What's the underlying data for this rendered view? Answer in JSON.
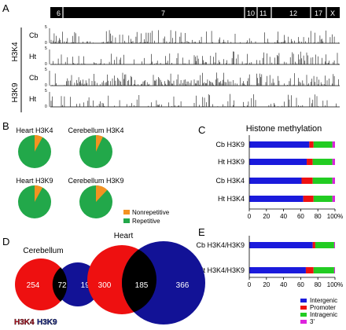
{
  "panels": {
    "a": "A",
    "b": "B",
    "c": "C",
    "d": "D",
    "e": "E"
  },
  "panel_a": {
    "chromosomes": [
      "6",
      "7",
      "10",
      "11",
      "12",
      "17",
      "X"
    ],
    "marks": [
      "H3K4",
      "H3K9"
    ],
    "tracks": [
      {
        "mark": "H3K4",
        "tissue": "Cb",
        "ymax": "5",
        "ymin": "0"
      },
      {
        "mark": "H3K4",
        "tissue": "Ht",
        "ymax": "5",
        "ymin": "0"
      },
      {
        "mark": "H3K9",
        "tissue": "Cb",
        "ymax": "5",
        "ymin": "0"
      },
      {
        "mark": "H3K9",
        "tissue": "Ht",
        "ymax": "5",
        "ymin": "0"
      }
    ]
  },
  "panel_b": {
    "pies": [
      {
        "title": "Heart H3K4",
        "nonrepetitive": 0.08
      },
      {
        "title": "Cerebellum H3K4",
        "nonrepetitive": 0.07
      },
      {
        "title": "Heart H3K9",
        "nonrepetitive": 0.08
      },
      {
        "title": "Cerebellum H3K9",
        "nonrepetitive": 0.12
      }
    ],
    "legend": [
      {
        "label": "Nonrepetitive",
        "color": "#f39221"
      },
      {
        "label": "Repetitive",
        "color": "#22a84a"
      }
    ]
  },
  "chart_data": [
    {
      "type": "bar",
      "title": "Histone methylation",
      "stacked": true,
      "categories": [
        "Cb H3K9",
        "Ht H3K9",
        "Cb H3K4",
        "Ht H3K4"
      ],
      "series": [
        {
          "name": "Intergenic",
          "values": [
            70,
            67,
            61,
            63
          ]
        },
        {
          "name": "Promoter",
          "values": [
            5,
            7,
            13,
            12
          ]
        },
        {
          "name": "Intragenic",
          "values": [
            22,
            23,
            23,
            22
          ]
        },
        {
          "name": "3'",
          "values": [
            3,
            3,
            3,
            3
          ]
        }
      ],
      "xticks": [
        "0",
        "20",
        "40",
        "60",
        "80",
        "100%"
      ],
      "xlim": [
        0,
        100
      ]
    },
    {
      "type": "bar",
      "stacked": true,
      "categories": [
        "Cb H3K4/H3K9",
        "Ht H3K4/H3K9"
      ],
      "series": [
        {
          "name": "Intergenic",
          "values": [
            74,
            66
          ]
        },
        {
          "name": "Promoter",
          "values": [
            3,
            9
          ]
        },
        {
          "name": "Intragenic",
          "values": [
            22,
            24
          ]
        },
        {
          "name": "3'",
          "values": [
            1,
            1
          ]
        }
      ],
      "xticks": [
        "0",
        "20",
        "40",
        "60",
        "80",
        "100%"
      ],
      "xlim": [
        0,
        100
      ]
    }
  ],
  "colors": {
    "Intergenic": "#1a1adc",
    "Promoter": "#ee1111",
    "Intragenic": "#22cc22",
    "3'": "#dd22dd"
  },
  "legend_e": [
    "Intergenic",
    "Promoter",
    "Intragenic",
    "3'"
  ],
  "panel_d": {
    "venns": [
      {
        "title": "Cerebellum",
        "left": "254",
        "overlap": "72",
        "right": "198"
      },
      {
        "title": "Heart",
        "left": "300",
        "overlap": "185",
        "right": "366"
      }
    ],
    "legend": [
      {
        "label": "H3K4",
        "color": "#b01020"
      },
      {
        "label": "H3K9",
        "color": "#1b2a8f"
      }
    ]
  }
}
